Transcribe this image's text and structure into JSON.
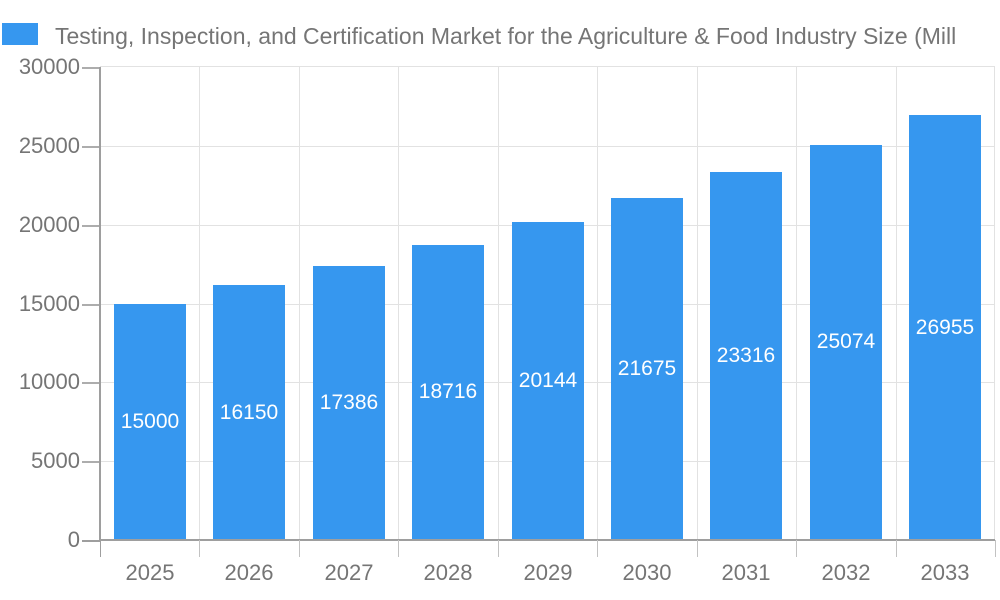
{
  "colors": {
    "bar": "#3697EF",
    "bar_label": "#FFFFFF",
    "text": "#757575",
    "grid": "#E2E2E2",
    "axis": "#9E9E9E",
    "tick": "#ADADAD",
    "background": "#FFFFFF"
  },
  "legend": {
    "position": "top-left",
    "swatch_color": "#3697EF"
  },
  "chart_data": {
    "type": "bar",
    "title": "Testing, Inspection, and Certification Market for the Agriculture & Food Industry Size (Mill",
    "categories": [
      "2025",
      "2026",
      "2027",
      "2028",
      "2029",
      "2030",
      "2031",
      "2032",
      "2033"
    ],
    "values": [
      15000,
      16150,
      17386,
      18716,
      20144,
      21675,
      23316,
      25074,
      26955
    ],
    "bar_labels": [
      "15000",
      "16150",
      "17386",
      "18716",
      "20144",
      "21675",
      "23316",
      "25074",
      "26955"
    ],
    "xlabel": "",
    "ylabel": "",
    "ylim": [
      0,
      30000
    ],
    "ytick_step": 5000,
    "ytick_labels": [
      "0",
      "5000",
      "10000",
      "15000",
      "20000",
      "25000",
      "30000"
    ],
    "grid": true,
    "legend_position": "top",
    "bar_value_labels_inside": true
  }
}
